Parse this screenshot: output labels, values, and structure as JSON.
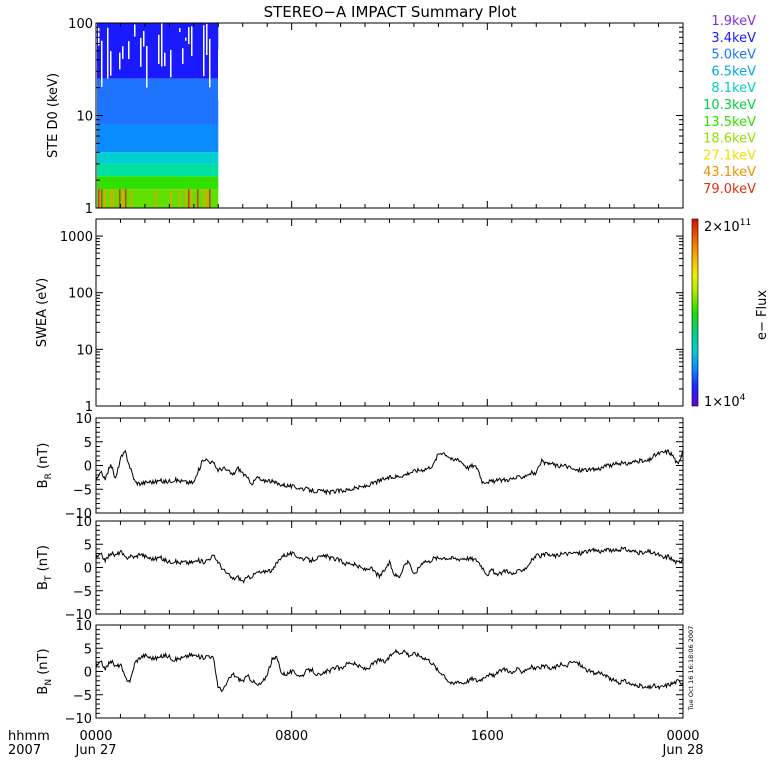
{
  "title": "STEREO−A IMPACT Summary Plot",
  "timestamp": "Tue Oct 16 16:18:06 2007",
  "x_axis": {
    "hhmm_label": "hhmm",
    "year_label": "2007",
    "ticks": [
      "0000",
      "0800",
      "1600",
      "0000"
    ],
    "dates": [
      "Jun 27",
      "Jun 28"
    ]
  },
  "colors": {
    "frame": "#000000",
    "trace": "#000000",
    "colorbar": [
      "#6a00d8",
      "#1a28ff",
      "#0a8cff",
      "#00d0d0",
      "#00d080",
      "#20e000",
      "#a0e800",
      "#f0f000",
      "#f8b000",
      "#f06000",
      "#d81000"
    ]
  },
  "chart_data": [
    {
      "type": "line",
      "panel": "ste",
      "ylabel": "STE D0 (keV)",
      "yscale": "log",
      "ylim": [
        1,
        100
      ],
      "yticks": [
        "100",
        "10",
        "1"
      ],
      "xlim_hours": [
        0,
        24
      ],
      "data_end_hours": 5.0,
      "series": [
        {
          "name": "1.9keV",
          "color": "#8a2be2"
        },
        {
          "name": "3.4keV",
          "color": "#1a1aff"
        },
        {
          "name": "5.0keV",
          "color": "#1e74ff"
        },
        {
          "name": "6.5keV",
          "color": "#00a8f0"
        },
        {
          "name": "8.1keV",
          "color": "#00d0c0"
        },
        {
          "name": "10.3keV",
          "color": "#00d040"
        },
        {
          "name": "13.5keV",
          "color": "#30e000"
        },
        {
          "name": "18.6keV",
          "color": "#90e000"
        },
        {
          "name": "27.1keV",
          "color": "#f0e000"
        },
        {
          "name": "43.1keV",
          "color": "#f09000"
        },
        {
          "name": "79.0keV",
          "color": "#e03010"
        }
      ]
    },
    {
      "type": "heatmap",
      "panel": "swea",
      "ylabel": "SWEA (eV)",
      "yscale": "log",
      "ylim": [
        1,
        2000
      ],
      "yticks": [
        "1000",
        "100",
        "10",
        "1"
      ],
      "colorbar_label": "e− Flux",
      "colorbar_max": "2×10",
      "colorbar_max_exp": "11",
      "colorbar_min": "1×10",
      "colorbar_min_exp": "4"
    },
    {
      "type": "line",
      "panel": "br",
      "ylabel_main": "B",
      "ylabel_sub": "R",
      "ylabel_unit": " (nT)",
      "ylim": [
        -10,
        10
      ],
      "yticks": [
        "10",
        "5",
        "0",
        "−5",
        "−10"
      ],
      "x_hours": [
        0.0,
        0.2,
        0.4,
        0.6,
        0.8,
        1.0,
        1.2,
        1.4,
        1.6,
        1.8,
        2.0,
        2.2,
        2.4,
        2.6,
        2.8,
        3.0,
        3.2,
        3.4,
        3.6,
        3.8,
        4.0,
        4.2,
        4.4,
        4.6,
        4.8,
        5.0,
        5.2,
        5.4,
        5.6,
        5.8,
        6.0,
        6.2,
        6.4,
        6.6,
        6.8,
        7.0,
        7.2,
        7.4,
        7.6,
        7.8,
        8.0,
        8.2,
        8.4,
        8.6,
        8.8,
        9.0,
        9.2,
        9.4,
        9.6,
        9.8,
        10.0,
        10.2,
        10.4,
        10.6,
        10.8,
        11.0,
        11.2,
        11.4,
        11.6,
        11.8,
        12.0,
        12.2,
        12.4,
        12.6,
        12.8,
        13.0,
        13.2,
        13.4,
        13.6,
        13.8,
        14.0,
        14.2,
        14.4,
        14.6,
        14.8,
        15.0,
        15.2,
        15.4,
        15.6,
        15.8,
        16.0,
        16.2,
        16.4,
        16.6,
        16.8,
        17.0,
        17.2,
        17.4,
        17.6,
        17.8,
        18.0,
        18.2,
        18.4,
        18.6,
        18.8,
        19.0,
        19.2,
        19.4,
        19.6,
        19.8,
        20.0,
        20.2,
        20.4,
        20.6,
        20.8,
        21.0,
        21.2,
        21.4,
        21.6,
        21.8,
        22.0,
        22.2,
        22.4,
        22.6,
        22.8,
        23.0,
        23.2,
        23.4,
        23.6,
        23.8,
        24.0
      ],
      "values": [
        -3.2,
        -1.5,
        -2.8,
        0.5,
        -3.0,
        1.5,
        2.8,
        -0.5,
        -3.5,
        -3.8,
        -3.6,
        -3.4,
        -3.5,
        -3.2,
        -3.4,
        -3.3,
        -3.0,
        -3.2,
        -3.4,
        -3.6,
        -3.6,
        -1.0,
        1.5,
        1.0,
        0.5,
        -1.0,
        -0.5,
        -1.2,
        -2.0,
        -0.5,
        -1.6,
        -2.8,
        -3.8,
        -2.4,
        -3.4,
        -3.0,
        -3.4,
        -3.8,
        -4.0,
        -4.2,
        -4.4,
        -4.6,
        -4.8,
        -5.0,
        -5.2,
        -5.4,
        -5.4,
        -5.6,
        -5.6,
        -5.4,
        -5.3,
        -5.2,
        -5.0,
        -4.8,
        -4.6,
        -4.4,
        -4.0,
        -3.6,
        -3.2,
        -2.8,
        -2.6,
        -2.4,
        -2.2,
        -2.0,
        -1.5,
        -1.2,
        -1.0,
        -0.8,
        -0.5,
        0.2,
        2.5,
        2.8,
        2.0,
        1.0,
        1.5,
        0.5,
        -0.5,
        0.0,
        -0.5,
        -3.5,
        -3.3,
        -3.4,
        -3.2,
        -3.0,
        -3.0,
        -2.8,
        -2.6,
        -2.4,
        -2.0,
        -1.5,
        -1.8,
        1.0,
        0.2,
        0.5,
        0.0,
        -0.2,
        0.0,
        -0.5,
        -1.0,
        -1.0,
        -0.8,
        -1.0,
        -0.8,
        -0.6,
        -0.2,
        0.0,
        0.2,
        0.5,
        0.3,
        0.5,
        0.8,
        1.0,
        0.8,
        1.0,
        2.0,
        2.5,
        2.8,
        3.0,
        2.0,
        0.0,
        3.5
      ]
    },
    {
      "type": "line",
      "panel": "bt",
      "ylabel_main": "B",
      "ylabel_sub": "T",
      "ylabel_unit": " (nT)",
      "ylim": [
        -10,
        10
      ],
      "yticks": [
        "10",
        "5",
        "0",
        "−5",
        "−10"
      ],
      "x_hours": [
        0.0,
        0.2,
        0.4,
        0.6,
        0.8,
        1.0,
        1.2,
        1.4,
        1.6,
        1.8,
        2.0,
        2.2,
        2.4,
        2.6,
        2.8,
        3.0,
        3.2,
        3.4,
        3.6,
        3.8,
        4.0,
        4.2,
        4.4,
        4.6,
        4.8,
        5.0,
        5.2,
        5.4,
        5.6,
        5.8,
        6.0,
        6.2,
        6.4,
        6.6,
        6.8,
        7.0,
        7.2,
        7.4,
        7.6,
        7.8,
        8.0,
        8.2,
        8.4,
        8.6,
        8.8,
        9.0,
        9.2,
        9.4,
        9.6,
        9.8,
        10.0,
        10.2,
        10.4,
        10.6,
        10.8,
        11.0,
        11.2,
        11.4,
        11.6,
        11.8,
        12.0,
        12.2,
        12.4,
        12.6,
        12.8,
        13.0,
        13.2,
        13.4,
        13.6,
        13.8,
        14.0,
        14.2,
        14.4,
        14.6,
        14.8,
        15.0,
        15.2,
        15.4,
        15.6,
        15.8,
        16.0,
        16.2,
        16.4,
        16.6,
        16.8,
        17.0,
        17.2,
        17.4,
        17.6,
        17.8,
        18.0,
        18.2,
        18.4,
        18.6,
        18.8,
        19.0,
        19.2,
        19.4,
        19.6,
        19.8,
        20.0,
        20.2,
        20.4,
        20.6,
        20.8,
        21.0,
        21.2,
        21.4,
        21.6,
        21.8,
        22.0,
        22.2,
        22.4,
        22.6,
        22.8,
        23.0,
        23.2,
        23.4,
        23.6,
        23.8,
        24.0
      ],
      "values": [
        2.0,
        2.8,
        1.5,
        3.2,
        2.5,
        3.5,
        2.0,
        2.5,
        2.2,
        3.0,
        2.4,
        2.0,
        1.8,
        2.2,
        1.6,
        1.2,
        1.4,
        1.0,
        1.2,
        1.0,
        1.2,
        1.5,
        1.2,
        1.8,
        2.5,
        1.2,
        -0.5,
        -1.5,
        -2.5,
        -2.0,
        -3.0,
        -2.2,
        -1.8,
        -1.0,
        -1.2,
        -0.5,
        -0.8,
        1.0,
        2.5,
        2.8,
        3.0,
        2.5,
        2.0,
        1.8,
        1.5,
        2.0,
        2.2,
        2.5,
        2.0,
        1.8,
        1.5,
        0.8,
        1.0,
        0.5,
        0.0,
        -0.5,
        0.0,
        -1.0,
        -2.0,
        -0.5,
        1.0,
        -1.5,
        -2.0,
        0.5,
        1.5,
        -1.8,
        0.0,
        1.5,
        1.2,
        2.0,
        2.0,
        2.2,
        2.0,
        2.0,
        1.8,
        2.0,
        2.0,
        1.8,
        1.5,
        0.0,
        -1.5,
        -0.5,
        -1.8,
        -1.0,
        -0.5,
        -1.5,
        -1.0,
        -0.5,
        0.0,
        1.5,
        2.5,
        2.5,
        2.8,
        2.6,
        2.5,
        2.8,
        3.0,
        3.0,
        3.2,
        3.0,
        3.5,
        3.5,
        3.8,
        3.5,
        3.6,
        3.8,
        3.5,
        3.8,
        4.0,
        3.6,
        3.5,
        3.2,
        3.0,
        3.5,
        3.0,
        2.8,
        2.0,
        2.5,
        1.5,
        1.0,
        2.0
      ]
    },
    {
      "type": "line",
      "panel": "bn",
      "ylabel_main": "B",
      "ylabel_sub": "N",
      "ylabel_unit": " (nT)",
      "ylim": [
        -10,
        10
      ],
      "yticks": [
        "10",
        "5",
        "0",
        "−5",
        "−10"
      ],
      "x_hours": [
        0.0,
        0.2,
        0.4,
        0.6,
        0.8,
        1.0,
        1.2,
        1.4,
        1.6,
        1.8,
        2.0,
        2.2,
        2.4,
        2.6,
        2.8,
        3.0,
        3.2,
        3.4,
        3.6,
        3.8,
        4.0,
        4.2,
        4.4,
        4.6,
        4.8,
        5.0,
        5.2,
        5.4,
        5.6,
        5.8,
        6.0,
        6.2,
        6.4,
        6.6,
        6.8,
        7.0,
        7.2,
        7.4,
        7.6,
        7.8,
        8.0,
        8.2,
        8.4,
        8.6,
        8.8,
        9.0,
        9.2,
        9.4,
        9.6,
        9.8,
        10.0,
        10.2,
        10.4,
        10.6,
        10.8,
        11.0,
        11.2,
        11.4,
        11.6,
        11.8,
        12.0,
        12.2,
        12.4,
        12.6,
        12.8,
        13.0,
        13.2,
        13.4,
        13.6,
        13.8,
        14.0,
        14.2,
        14.4,
        14.6,
        14.8,
        15.0,
        15.2,
        15.4,
        15.6,
        15.8,
        16.0,
        16.2,
        16.4,
        16.6,
        16.8,
        17.0,
        17.2,
        17.4,
        17.6,
        17.8,
        18.0,
        18.2,
        18.4,
        18.6,
        18.8,
        19.0,
        19.2,
        19.4,
        19.6,
        19.8,
        20.0,
        20.2,
        20.4,
        20.6,
        20.8,
        21.0,
        21.2,
        21.4,
        21.6,
        21.8,
        22.0,
        22.2,
        22.4,
        22.6,
        22.8,
        23.0,
        23.2,
        23.4,
        23.6,
        23.8,
        24.0
      ],
      "values": [
        1.0,
        2.0,
        0.5,
        2.5,
        1.0,
        1.5,
        -1.5,
        -2.0,
        2.0,
        3.0,
        3.5,
        3.0,
        2.8,
        3.0,
        3.5,
        3.2,
        2.5,
        2.8,
        3.0,
        3.5,
        3.5,
        3.2,
        3.0,
        3.5,
        2.8,
        -3.5,
        -4.0,
        -2.0,
        -0.5,
        -1.5,
        -2.0,
        -1.0,
        -2.0,
        -3.0,
        -2.5,
        -0.5,
        2.5,
        3.0,
        -0.5,
        -0.5,
        0.0,
        -0.5,
        -1.0,
        0.0,
        0.5,
        -0.5,
        -1.0,
        0.0,
        0.2,
        1.0,
        0.5,
        1.5,
        2.0,
        1.5,
        1.0,
        0.5,
        1.0,
        2.0,
        2.5,
        2.0,
        3.0,
        4.5,
        4.0,
        4.5,
        3.5,
        3.8,
        3.5,
        3.0,
        2.5,
        1.5,
        0.0,
        -0.5,
        -2.0,
        -2.8,
        -2.0,
        -2.5,
        -2.0,
        -1.5,
        -2.0,
        -1.5,
        -0.5,
        -1.0,
        -0.5,
        0.5,
        0.5,
        -0.5,
        0.5,
        0.0,
        0.5,
        1.0,
        0.5,
        1.0,
        1.0,
        0.5,
        1.0,
        1.5,
        1.0,
        2.0,
        2.0,
        1.5,
        0.5,
        0.0,
        -0.5,
        0.0,
        -1.0,
        -1.5,
        -2.0,
        -2.5,
        -2.0,
        -2.5,
        -3.0,
        -3.0,
        -3.5,
        -3.5,
        -3.0,
        -3.5,
        -3.2,
        -2.8,
        -2.5,
        -2.0,
        -2.5
      ]
    }
  ]
}
